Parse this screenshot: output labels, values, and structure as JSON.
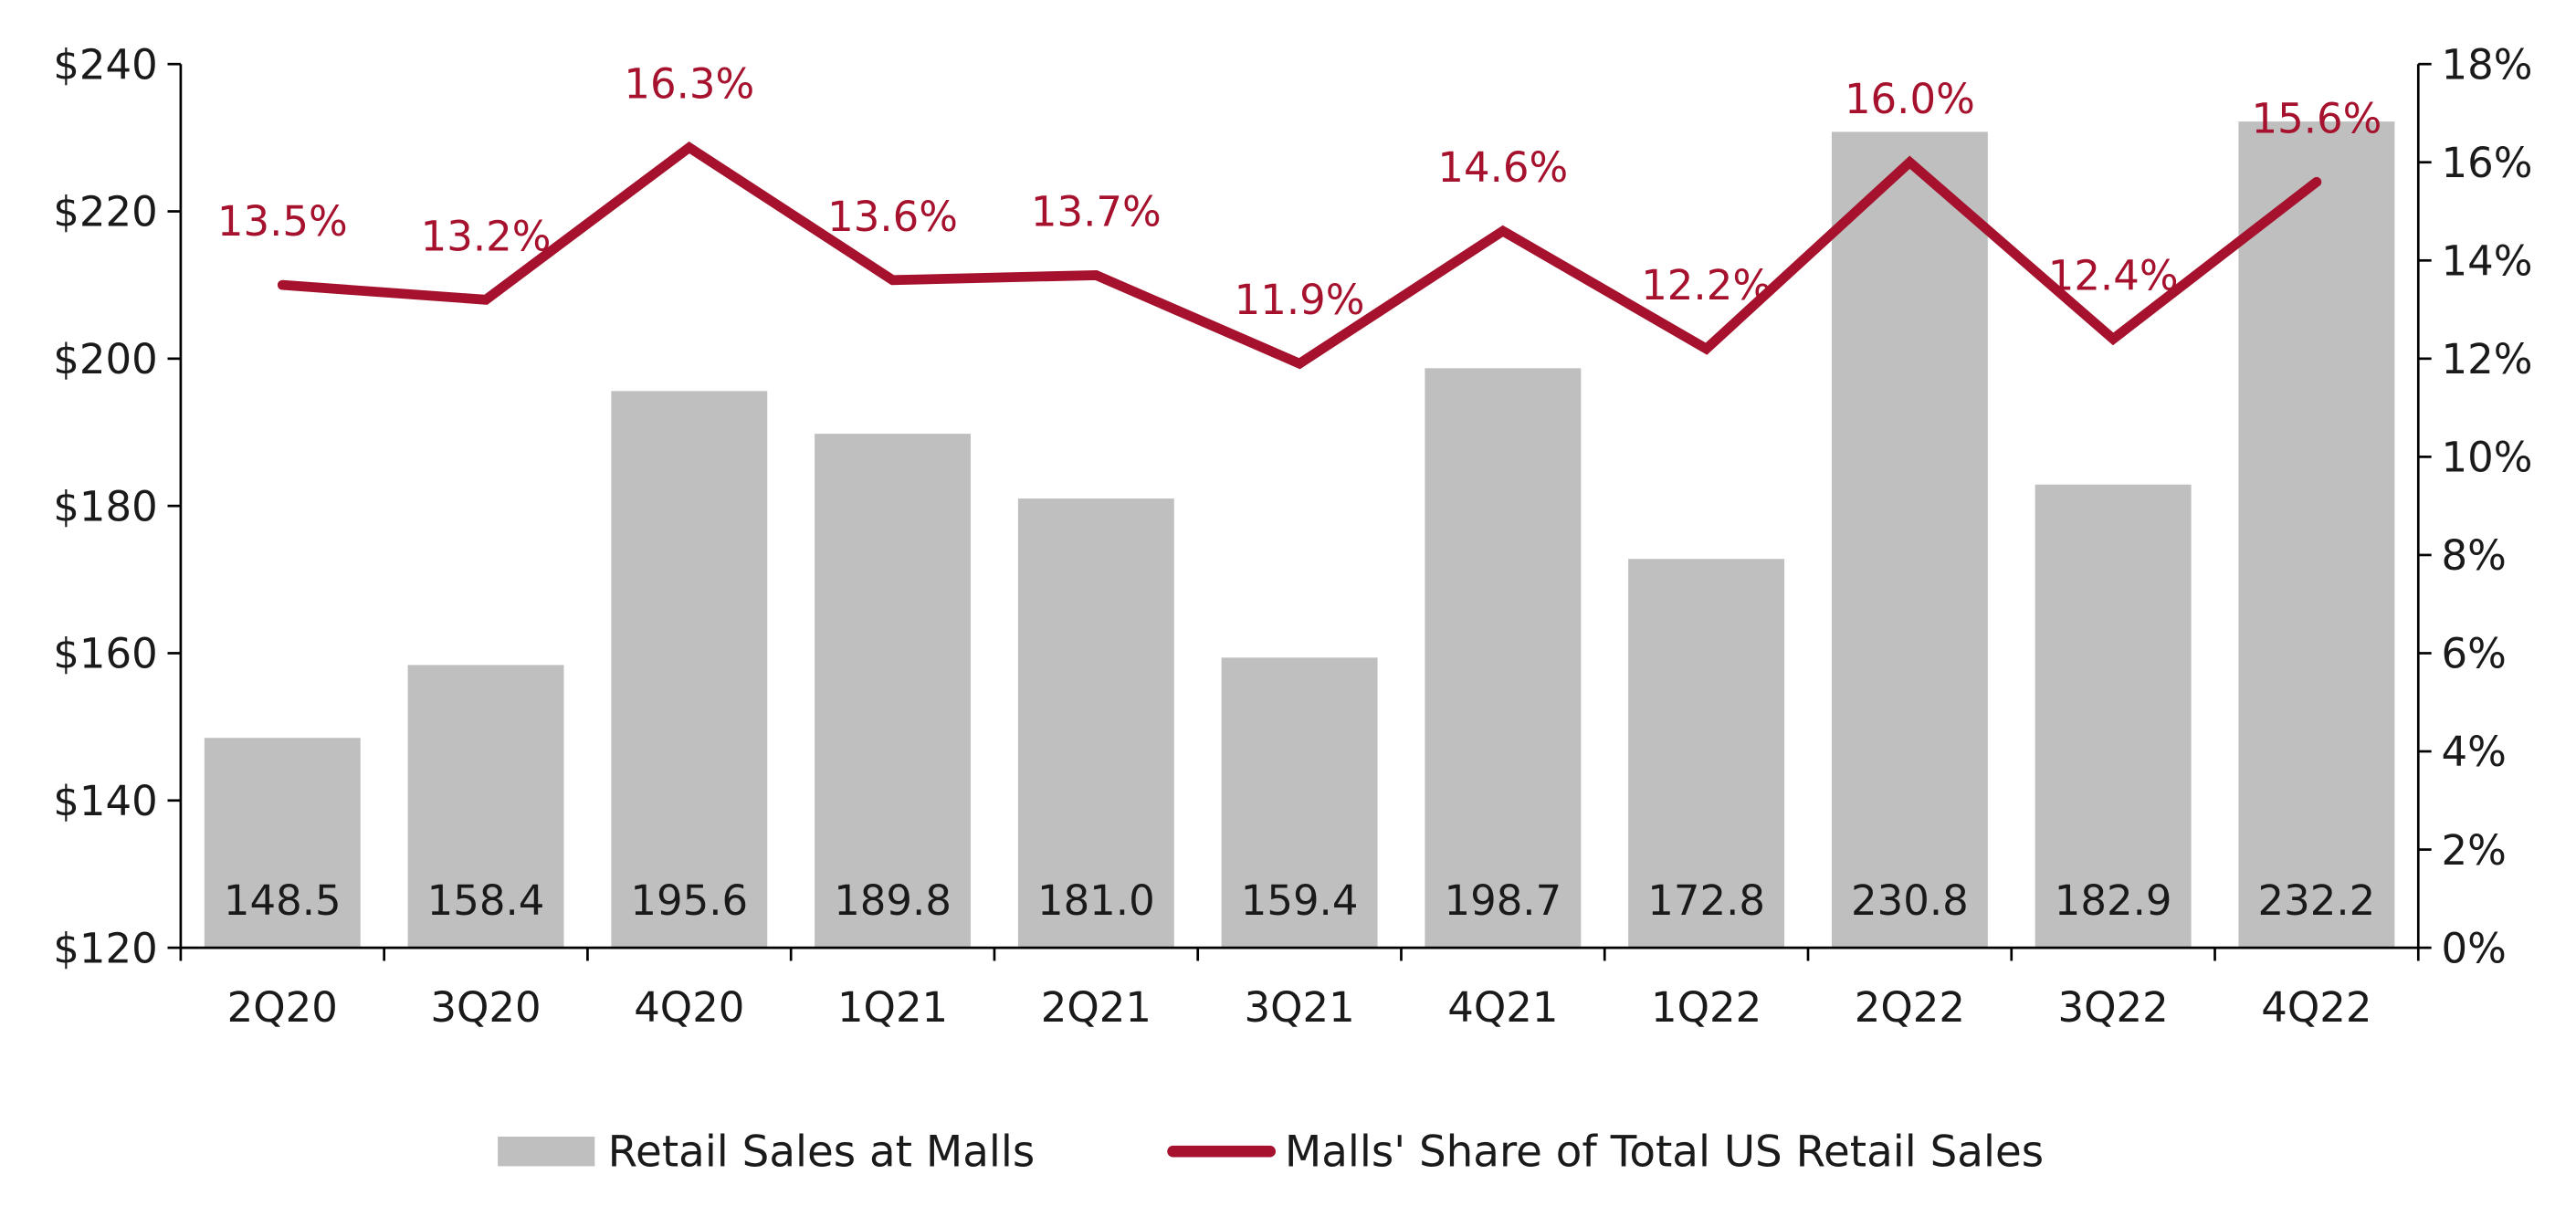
{
  "chart_data": {
    "type": "bar",
    "categories": [
      "2Q20",
      "3Q20",
      "4Q20",
      "1Q21",
      "2Q21",
      "3Q21",
      "4Q21",
      "1Q22",
      "2Q22",
      "3Q22",
      "4Q22"
    ],
    "series": [
      {
        "name": "Retail Sales at Malls",
        "type": "bar",
        "axis": "left",
        "values": [
          148.5,
          158.4,
          195.6,
          189.8,
          181.0,
          159.4,
          198.7,
          172.8,
          230.8,
          182.9,
          232.2
        ],
        "labels": [
          "148.5",
          "158.4",
          "195.6",
          "189.8",
          "181.0",
          "159.4",
          "198.7",
          "172.8",
          "230.8",
          "182.9",
          "232.2"
        ],
        "color": "#bfbfbf"
      },
      {
        "name": "Malls' Share of Total US Retail Sales",
        "type": "line",
        "axis": "right",
        "values": [
          13.5,
          13.2,
          16.3,
          13.6,
          13.7,
          11.9,
          14.6,
          12.2,
          16.0,
          12.4,
          15.6
        ],
        "labels": [
          "13.5%",
          "13.2%",
          "16.3%",
          "13.6%",
          "13.7%",
          "11.9%",
          "14.6%",
          "12.2%",
          "16.0%",
          "12.4%",
          "15.6%"
        ],
        "color": "#a6122d"
      }
    ],
    "y_left": {
      "range": [
        120,
        240
      ],
      "ticks": [
        "$120",
        "$140",
        "$160",
        "$180",
        "$200",
        "$220",
        "$240"
      ]
    },
    "y_right": {
      "range": [
        0,
        18
      ],
      "ticks": [
        "0%",
        "2%",
        "4%",
        "6%",
        "8%",
        "10%",
        "12%",
        "14%",
        "16%",
        "18%"
      ]
    },
    "grid": false,
    "legend_position": "bottom"
  }
}
